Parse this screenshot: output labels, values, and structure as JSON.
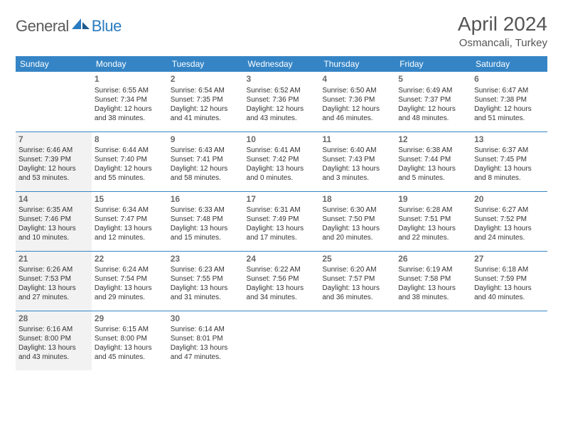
{
  "logo": {
    "part1": "General",
    "part2": "Blue"
  },
  "title": "April 2024",
  "location": "Osmancali, Turkey",
  "colors": {
    "header_bg": "#3585c6",
    "header_text": "#ffffff",
    "shaded_bg": "#f2f2f2",
    "border": "#3585c6",
    "logo_gray": "#5a5a5a",
    "logo_blue": "#2a7bbf",
    "text": "#333333",
    "page_bg": "#ffffff"
  },
  "weekdays": [
    "Sunday",
    "Monday",
    "Tuesday",
    "Wednesday",
    "Thursday",
    "Friday",
    "Saturday"
  ],
  "weeks": [
    [
      {
        "day": null
      },
      {
        "day": 1,
        "sunrise": "6:55 AM",
        "sunset": "7:34 PM",
        "daylight": "12 hours and 38 minutes."
      },
      {
        "day": 2,
        "sunrise": "6:54 AM",
        "sunset": "7:35 PM",
        "daylight": "12 hours and 41 minutes."
      },
      {
        "day": 3,
        "sunrise": "6:52 AM",
        "sunset": "7:36 PM",
        "daylight": "12 hours and 43 minutes."
      },
      {
        "day": 4,
        "sunrise": "6:50 AM",
        "sunset": "7:36 PM",
        "daylight": "12 hours and 46 minutes."
      },
      {
        "day": 5,
        "sunrise": "6:49 AM",
        "sunset": "7:37 PM",
        "daylight": "12 hours and 48 minutes."
      },
      {
        "day": 6,
        "sunrise": "6:47 AM",
        "sunset": "7:38 PM",
        "daylight": "12 hours and 51 minutes."
      }
    ],
    [
      {
        "day": 7,
        "shaded": true,
        "sunrise": "6:46 AM",
        "sunset": "7:39 PM",
        "daylight": "12 hours and 53 minutes."
      },
      {
        "day": 8,
        "sunrise": "6:44 AM",
        "sunset": "7:40 PM",
        "daylight": "12 hours and 55 minutes."
      },
      {
        "day": 9,
        "sunrise": "6:43 AM",
        "sunset": "7:41 PM",
        "daylight": "12 hours and 58 minutes."
      },
      {
        "day": 10,
        "sunrise": "6:41 AM",
        "sunset": "7:42 PM",
        "daylight": "13 hours and 0 minutes."
      },
      {
        "day": 11,
        "sunrise": "6:40 AM",
        "sunset": "7:43 PM",
        "daylight": "13 hours and 3 minutes."
      },
      {
        "day": 12,
        "sunrise": "6:38 AM",
        "sunset": "7:44 PM",
        "daylight": "13 hours and 5 minutes."
      },
      {
        "day": 13,
        "sunrise": "6:37 AM",
        "sunset": "7:45 PM",
        "daylight": "13 hours and 8 minutes."
      }
    ],
    [
      {
        "day": 14,
        "shaded": true,
        "sunrise": "6:35 AM",
        "sunset": "7:46 PM",
        "daylight": "13 hours and 10 minutes."
      },
      {
        "day": 15,
        "sunrise": "6:34 AM",
        "sunset": "7:47 PM",
        "daylight": "13 hours and 12 minutes."
      },
      {
        "day": 16,
        "sunrise": "6:33 AM",
        "sunset": "7:48 PM",
        "daylight": "13 hours and 15 minutes."
      },
      {
        "day": 17,
        "sunrise": "6:31 AM",
        "sunset": "7:49 PM",
        "daylight": "13 hours and 17 minutes."
      },
      {
        "day": 18,
        "sunrise": "6:30 AM",
        "sunset": "7:50 PM",
        "daylight": "13 hours and 20 minutes."
      },
      {
        "day": 19,
        "sunrise": "6:28 AM",
        "sunset": "7:51 PM",
        "daylight": "13 hours and 22 minutes."
      },
      {
        "day": 20,
        "sunrise": "6:27 AM",
        "sunset": "7:52 PM",
        "daylight": "13 hours and 24 minutes."
      }
    ],
    [
      {
        "day": 21,
        "shaded": true,
        "sunrise": "6:26 AM",
        "sunset": "7:53 PM",
        "daylight": "13 hours and 27 minutes."
      },
      {
        "day": 22,
        "sunrise": "6:24 AM",
        "sunset": "7:54 PM",
        "daylight": "13 hours and 29 minutes."
      },
      {
        "day": 23,
        "sunrise": "6:23 AM",
        "sunset": "7:55 PM",
        "daylight": "13 hours and 31 minutes."
      },
      {
        "day": 24,
        "sunrise": "6:22 AM",
        "sunset": "7:56 PM",
        "daylight": "13 hours and 34 minutes."
      },
      {
        "day": 25,
        "sunrise": "6:20 AM",
        "sunset": "7:57 PM",
        "daylight": "13 hours and 36 minutes."
      },
      {
        "day": 26,
        "sunrise": "6:19 AM",
        "sunset": "7:58 PM",
        "daylight": "13 hours and 38 minutes."
      },
      {
        "day": 27,
        "sunrise": "6:18 AM",
        "sunset": "7:59 PM",
        "daylight": "13 hours and 40 minutes."
      }
    ],
    [
      {
        "day": 28,
        "shaded": true,
        "sunrise": "6:16 AM",
        "sunset": "8:00 PM",
        "daylight": "13 hours and 43 minutes."
      },
      {
        "day": 29,
        "sunrise": "6:15 AM",
        "sunset": "8:00 PM",
        "daylight": "13 hours and 45 minutes."
      },
      {
        "day": 30,
        "sunrise": "6:14 AM",
        "sunset": "8:01 PM",
        "daylight": "13 hours and 47 minutes."
      },
      {
        "day": null
      },
      {
        "day": null
      },
      {
        "day": null
      },
      {
        "day": null
      }
    ]
  ],
  "labels": {
    "sunrise": "Sunrise:",
    "sunset": "Sunset:",
    "daylight": "Daylight:"
  }
}
